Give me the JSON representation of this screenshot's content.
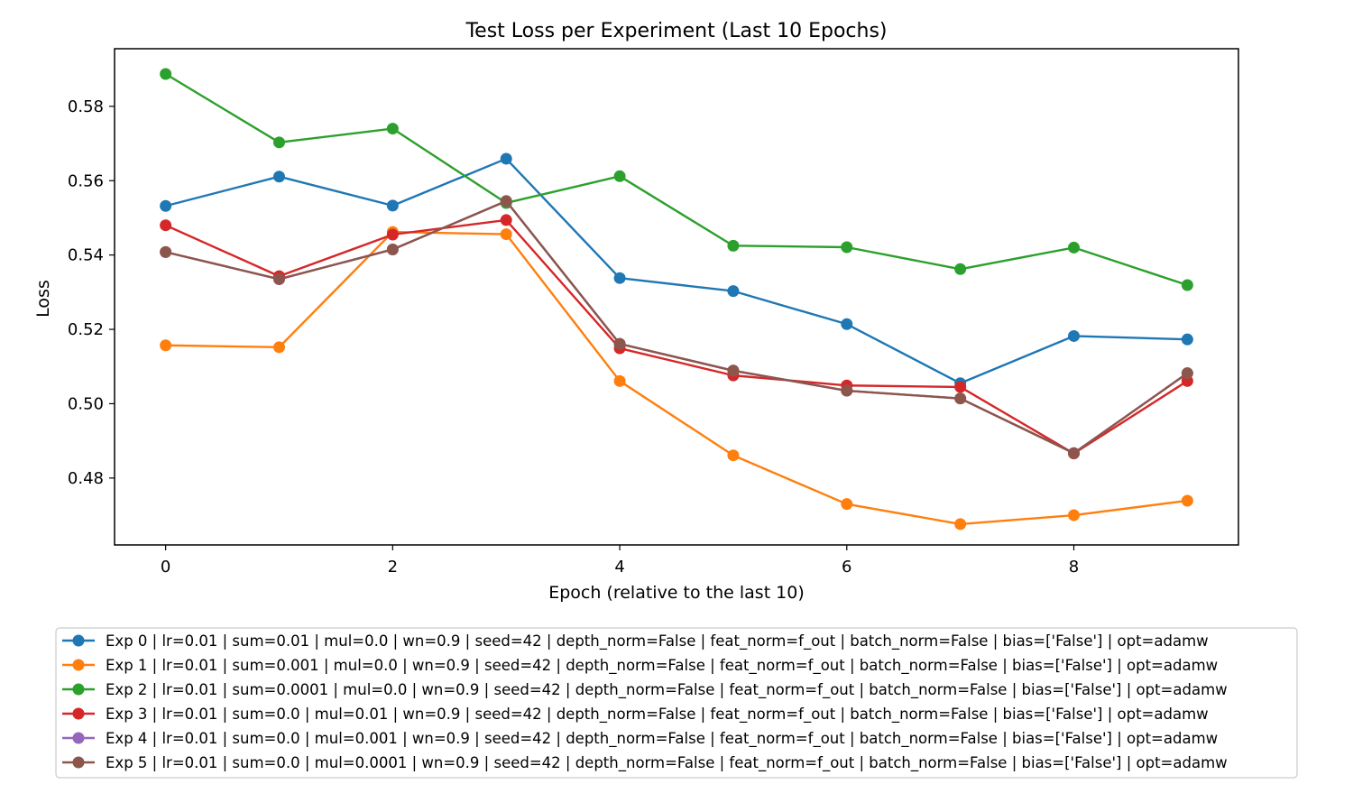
{
  "chart_data": {
    "type": "line",
    "title": "Test Loss per Experiment (Last 10 Epochs)",
    "xlabel": "Epoch (relative to the last 10)",
    "ylabel": "Loss",
    "x": [
      0,
      1,
      2,
      3,
      4,
      5,
      6,
      7,
      8,
      9
    ],
    "xlim": [
      -0.45,
      9.45
    ],
    "ylim": [
      0.462,
      0.5955
    ],
    "xticks": [
      0,
      2,
      4,
      6,
      8
    ],
    "yticks": [
      0.48,
      0.5,
      0.52,
      0.54,
      0.56,
      0.58
    ],
    "xtick_labels": [
      "0",
      "2",
      "4",
      "6",
      "8"
    ],
    "ytick_labels": [
      "0.48",
      "0.50",
      "0.52",
      "0.54",
      "0.56",
      "0.58"
    ],
    "grid": false,
    "legend_position": "below-center",
    "series": [
      {
        "name": "Exp 0 | lr=0.01 | sum=0.01 | mul=0.0 | wn=0.9 | seed=42 | depth_norm=False | feat_norm=f_out | batch_norm=False | bias=['False'] | opt=adamw",
        "color": "#1f77b4",
        "values": [
          0.5532,
          0.5611,
          0.5533,
          0.5659,
          0.5338,
          0.5303,
          0.5214,
          0.5055,
          0.5182,
          0.5173
        ]
      },
      {
        "name": "Exp 1 | lr=0.01 | sum=0.001 | mul=0.0 | wn=0.9 | seed=42 | depth_norm=False | feat_norm=f_out | batch_norm=False | bias=['False'] | opt=adamw",
        "color": "#ff7f0e",
        "values": [
          0.5157,
          0.5152,
          0.5462,
          0.5456,
          0.5061,
          0.4861,
          0.473,
          0.4676,
          0.47,
          0.4739
        ]
      },
      {
        "name": "Exp 2 | lr=0.01 | sum=0.0001 | mul=0.0 | wn=0.9 | seed=42 | depth_norm=False | feat_norm=f_out | batch_norm=False | bias=['False'] | opt=adamw",
        "color": "#2ca02c",
        "values": [
          0.5887,
          0.5703,
          0.574,
          0.554,
          0.5612,
          0.5425,
          0.5421,
          0.5362,
          0.542,
          0.5319
        ]
      },
      {
        "name": "Exp 3 | lr=0.01 | sum=0.0 | mul=0.01 | wn=0.9 | seed=42 | depth_norm=False | feat_norm=f_out | batch_norm=False | bias=['False'] | opt=adamw",
        "color": "#d62728",
        "values": [
          0.548,
          0.5343,
          0.5455,
          0.5494,
          0.5149,
          0.5076,
          0.5049,
          0.5045,
          0.4866,
          0.5061
        ]
      },
      {
        "name": "Exp 4 | lr=0.01 | sum=0.0 | mul=0.001 | wn=0.9 | seed=42 | depth_norm=False | feat_norm=f_out | batch_norm=False | bias=['False'] | opt=adamw",
        "color": "#9467bd",
        "values": [
          0.5408,
          0.5335,
          0.5415,
          0.5545,
          0.5161,
          0.5089,
          0.5035,
          0.5014,
          0.4867,
          0.5082
        ]
      },
      {
        "name": "Exp 5 | lr=0.01 | sum=0.0 | mul=0.0001 | wn=0.9 | seed=42 | depth_norm=False | feat_norm=f_out | batch_norm=False | bias=['False'] | opt=adamw",
        "color": "#8c564b",
        "values": [
          0.5408,
          0.5335,
          0.5415,
          0.5545,
          0.5161,
          0.5089,
          0.5035,
          0.5014,
          0.4867,
          0.5082
        ]
      }
    ]
  }
}
